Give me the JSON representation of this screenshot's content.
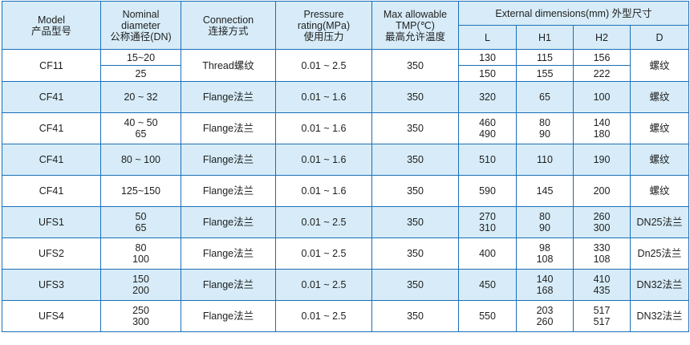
{
  "headers": {
    "model": [
      "Model",
      "产品型号"
    ],
    "nominal": [
      "Nominal",
      "diameter",
      "公称通径(DN)"
    ],
    "connection": [
      "Connection",
      "连接方式"
    ],
    "pressure": [
      "Pressure",
      "rating(MPa)",
      "使用压力"
    ],
    "tmp": [
      "Max allowable",
      "TMP(℃)",
      "最高允许温度"
    ],
    "external": "External dimensions(mm) 外型尺寸",
    "sub": [
      "L",
      "H1",
      "H2",
      "D"
    ]
  },
  "rows": [
    {
      "model": "CF11",
      "connection": "Thread螺纹",
      "pressure": "0.01 ~ 2.5",
      "tmp": "350",
      "d": "螺纹",
      "sub": [
        {
          "dn": "15~20",
          "l": "130",
          "h1": "115",
          "h2": "156"
        },
        {
          "dn": "25",
          "l": "150",
          "h1": "155",
          "h2": "222"
        }
      ]
    },
    {
      "model": "CF41",
      "dn": [
        "20 ~ 32"
      ],
      "connection": "Flange法兰",
      "pressure": "0.01 ~ 1.6",
      "tmp": "350",
      "l": [
        "320"
      ],
      "h1": [
        "65"
      ],
      "h2": [
        "100"
      ],
      "d": "螺纹"
    },
    {
      "model": "CF41",
      "dn": [
        "40 ~ 50",
        "65"
      ],
      "connection": "Flange法兰",
      "pressure": "0.01 ~ 1.6",
      "tmp": "350",
      "l": [
        "460",
        "490"
      ],
      "h1": [
        "80",
        "90"
      ],
      "h2": [
        "140",
        "180"
      ],
      "d": "螺纹"
    },
    {
      "model": "CF41",
      "dn": [
        "80 ~ 100"
      ],
      "connection": "Flange法兰",
      "pressure": "0.01 ~ 1.6",
      "tmp": "350",
      "l": [
        "510"
      ],
      "h1": [
        "110"
      ],
      "h2": [
        "190"
      ],
      "d": "螺纹"
    },
    {
      "model": "CF41",
      "dn": [
        "125~150"
      ],
      "connection": "Flange法兰",
      "pressure": "0.01 ~ 1.6",
      "tmp": "350",
      "l": [
        "590"
      ],
      "h1": [
        "145"
      ],
      "h2": [
        "200"
      ],
      "d": "螺纹"
    },
    {
      "model": "UFS1",
      "dn": [
        "50",
        "65"
      ],
      "connection": "Flange法兰",
      "pressure": "0.01 ~ 2.5",
      "tmp": "350",
      "l": [
        "270",
        "310"
      ],
      "h1": [
        "80",
        "90"
      ],
      "h2": [
        "260",
        "300"
      ],
      "d": "DN25法兰"
    },
    {
      "model": "UFS2",
      "dn": [
        "80",
        "100"
      ],
      "connection": "Flange法兰",
      "pressure": "0.01 ~ 2.5",
      "tmp": "350",
      "l": [
        "400"
      ],
      "h1": [
        "98",
        "108"
      ],
      "h2": [
        "330",
        "108"
      ],
      "d": "Dn25法兰"
    },
    {
      "model": "UFS3",
      "dn": [
        "150",
        "200"
      ],
      "connection": "Flange法兰",
      "pressure": "0.01 ~ 2.5",
      "tmp": "350",
      "l": [
        "450"
      ],
      "h1": [
        "140",
        "168"
      ],
      "h2": [
        "410",
        "435"
      ],
      "d": "DN32法兰"
    },
    {
      "model": "UFS4",
      "dn": [
        "250",
        "300"
      ],
      "connection": "Flange法兰",
      "pressure": "0.01 ~ 2.5",
      "tmp": "350",
      "l": [
        "550"
      ],
      "h1": [
        "203",
        "260"
      ],
      "h2": [
        "517",
        "517"
      ],
      "d": "DN32法兰"
    }
  ]
}
